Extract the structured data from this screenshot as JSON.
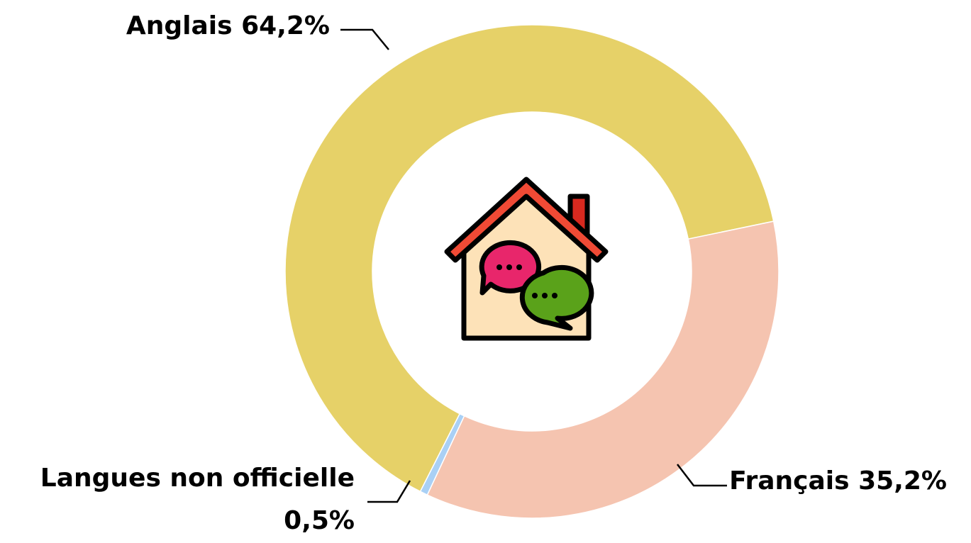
{
  "chart_data": {
    "type": "donut",
    "categories": [
      "Anglais",
      "Français",
      "Langues non officielle"
    ],
    "values": [
      64.2,
      35.2,
      0.5
    ],
    "value_labels": [
      "64,2%",
      "35,2%",
      "0,5%"
    ],
    "colors": [
      "#e6d168",
      "#f5c4b0",
      "#a9d0f5"
    ]
  }
}
